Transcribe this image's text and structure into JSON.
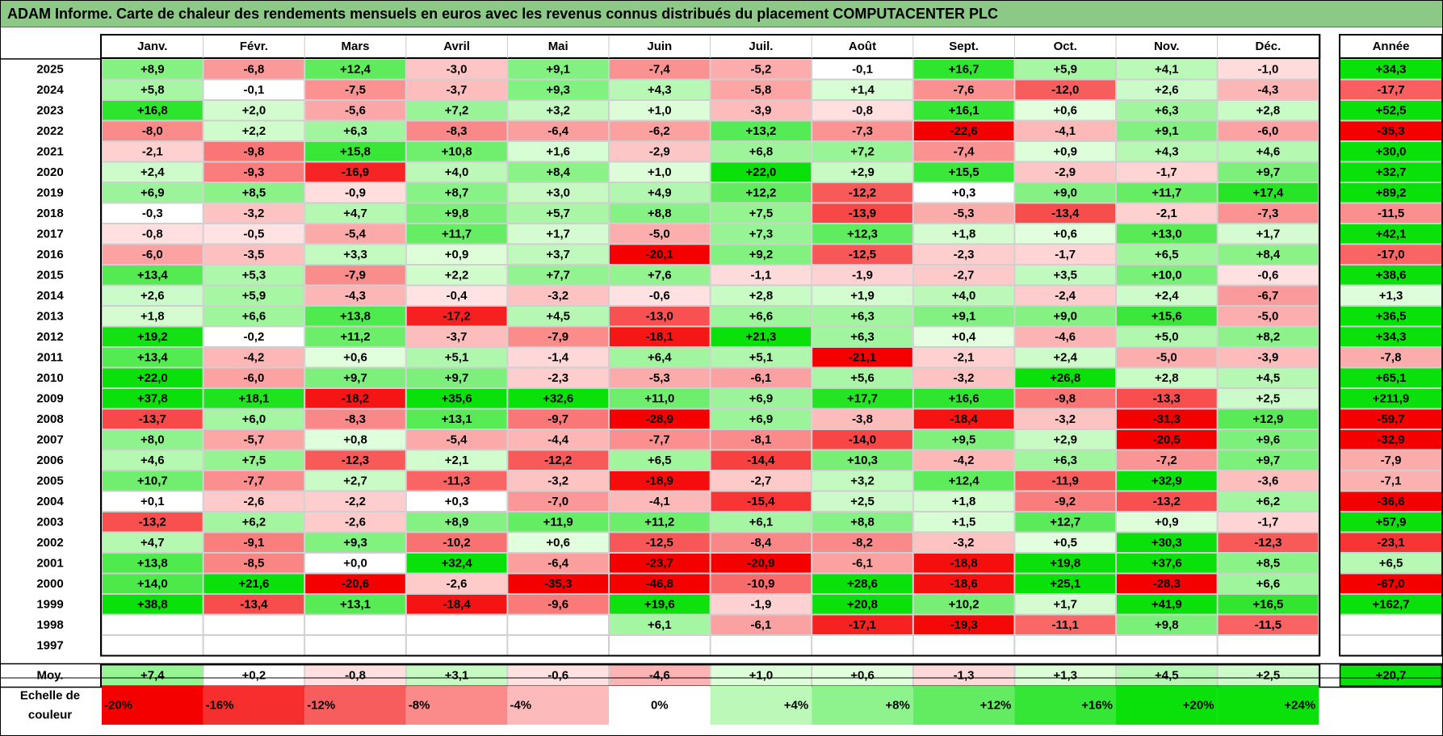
{
  "chart_data": {
    "type": "heatmap",
    "title": "ADAM Informe. Carte de chaleur des rendements mensuels en euros avec les revenus connus distribués du placement COMPUTACENTER PLC",
    "months": [
      "Janv.",
      "Févr.",
      "Mars",
      "Avril",
      "Mai",
      "Juin",
      "Juil.",
      "Août",
      "Sept.",
      "Oct.",
      "Nov.",
      "Déc."
    ],
    "year_header": "Année",
    "rows": [
      {
        "year": "2025",
        "values": [
          "+8,9",
          "-6,8",
          "+12,4",
          "-3,0",
          "+9,1",
          "-7,4",
          "-5,2",
          "-0,1",
          "+16,7",
          "+5,9",
          "+4,1",
          "-1,0"
        ],
        "annual": "+34,3"
      },
      {
        "year": "2024",
        "values": [
          "+5,8",
          "-0,1",
          "-7,5",
          "-3,7",
          "+9,3",
          "+4,3",
          "-5,8",
          "+1,4",
          "-7,6",
          "-12,0",
          "+2,6",
          "-4,3"
        ],
        "annual": "-17,7"
      },
      {
        "year": "2023",
        "values": [
          "+16,8",
          "+2,0",
          "-5,6",
          "+7,2",
          "+3,2",
          "+1,0",
          "-3,9",
          "-0,8",
          "+16,1",
          "+0,6",
          "+6,3",
          "+2,8"
        ],
        "annual": "+52,5"
      },
      {
        "year": "2022",
        "values": [
          "-8,0",
          "+2,2",
          "+6,3",
          "-8,3",
          "-6,4",
          "-6,2",
          "+13,2",
          "-7,3",
          "-22,6",
          "-4,1",
          "+9,1",
          "-6,0"
        ],
        "annual": "-35,3"
      },
      {
        "year": "2021",
        "values": [
          "-2,1",
          "-9,8",
          "+15,8",
          "+10,8",
          "+1,6",
          "-2,9",
          "+6,8",
          "+7,2",
          "-7,4",
          "+0,9",
          "+4,3",
          "+4,6"
        ],
        "annual": "+30,0"
      },
      {
        "year": "2020",
        "values": [
          "+2,4",
          "-9,3",
          "-16,9",
          "+4,0",
          "+8,4",
          "+1,0",
          "+22,0",
          "+2,9",
          "+15,5",
          "-2,9",
          "-1,7",
          "+9,7"
        ],
        "annual": "+32,7"
      },
      {
        "year": "2019",
        "values": [
          "+6,9",
          "+8,5",
          "-0,9",
          "+8,7",
          "+3,0",
          "+4,9",
          "+12,2",
          "-12,2",
          "+0,3",
          "+9,0",
          "+11,7",
          "+17,4"
        ],
        "annual": "+89,2"
      },
      {
        "year": "2018",
        "values": [
          "-0,3",
          "-3,2",
          "+4,7",
          "+9,8",
          "+5,7",
          "+8,8",
          "+7,5",
          "-13,9",
          "-5,3",
          "-13,4",
          "-2,1",
          "-7,3"
        ],
        "annual": "-11,5"
      },
      {
        "year": "2017",
        "values": [
          "-0,8",
          "-0,5",
          "-5,4",
          "+11,7",
          "+1,7",
          "-5,0",
          "+7,3",
          "+12,3",
          "+1,8",
          "+0,6",
          "+13,0",
          "+1,7"
        ],
        "annual": "+42,1"
      },
      {
        "year": "2016",
        "values": [
          "-6,0",
          "-3,5",
          "+3,3",
          "+0,9",
          "+3,7",
          "-20,1",
          "+9,2",
          "-12,5",
          "-2,3",
          "-1,7",
          "+6,5",
          "+8,4"
        ],
        "annual": "-17,0"
      },
      {
        "year": "2015",
        "values": [
          "+13,4",
          "+5,3",
          "-7,9",
          "+2,2",
          "+7,7",
          "+7,6",
          "-1,1",
          "-1,9",
          "-2,7",
          "+3,5",
          "+10,0",
          "-0,6"
        ],
        "annual": "+38,6"
      },
      {
        "year": "2014",
        "values": [
          "+2,6",
          "+5,9",
          "-4,3",
          "-0,4",
          "-3,2",
          "-0,6",
          "+2,8",
          "+1,9",
          "+4,0",
          "-2,4",
          "+2,4",
          "-6,7"
        ],
        "annual": "+1,3"
      },
      {
        "year": "2013",
        "values": [
          "+1,8",
          "+6,6",
          "+13,8",
          "-17,2",
          "+4,5",
          "-13,0",
          "+6,6",
          "+6,3",
          "+9,1",
          "+9,0",
          "+15,6",
          "-5,0"
        ],
        "annual": "+36,5"
      },
      {
        "year": "2012",
        "values": [
          "+19,2",
          "-0,2",
          "+11,2",
          "-3,7",
          "-7,9",
          "-18,1",
          "+21,3",
          "+6,3",
          "+0,4",
          "-4,6",
          "+5,0",
          "+8,2"
        ],
        "annual": "+34,3"
      },
      {
        "year": "2011",
        "values": [
          "+13,4",
          "-4,2",
          "+0,6",
          "+5,1",
          "-1,4",
          "+6,4",
          "+5,1",
          "-21,1",
          "-2,1",
          "+2,4",
          "-5,0",
          "-3,9"
        ],
        "annual": "-7,8"
      },
      {
        "year": "2010",
        "values": [
          "+22,0",
          "-6,0",
          "+9,7",
          "+9,7",
          "-2,3",
          "-5,3",
          "-6,1",
          "+5,6",
          "-3,2",
          "+26,8",
          "+2,8",
          "+4,5"
        ],
        "annual": "+65,1"
      },
      {
        "year": "2009",
        "values": [
          "+37,8",
          "+18,1",
          "-18,2",
          "+35,6",
          "+32,6",
          "+11,0",
          "+6,9",
          "+17,7",
          "+16,6",
          "-9,8",
          "-13,3",
          "+2,5"
        ],
        "annual": "+211,9"
      },
      {
        "year": "2008",
        "values": [
          "-13,7",
          "+6,0",
          "-8,3",
          "+13,1",
          "-9,7",
          "-28,9",
          "+6,9",
          "-3,8",
          "-18,4",
          "-3,2",
          "-31,3",
          "+12,9"
        ],
        "annual": "-59,7"
      },
      {
        "year": "2007",
        "values": [
          "+8,0",
          "-5,7",
          "+0,8",
          "-5,4",
          "-4,4",
          "-7,7",
          "-8,1",
          "-14,0",
          "+9,5",
          "+2,9",
          "-20,5",
          "+9,6"
        ],
        "annual": "-32,9"
      },
      {
        "year": "2006",
        "values": [
          "+4,6",
          "+7,5",
          "-12,3",
          "+2,1",
          "-12,2",
          "+6,5",
          "-14,4",
          "+10,3",
          "-4,2",
          "+6,3",
          "-7,2",
          "+9,7"
        ],
        "annual": "-7,9"
      },
      {
        "year": "2005",
        "values": [
          "+10,7",
          "-7,7",
          "+2,7",
          "-11,3",
          "-3,2",
          "-18,9",
          "-2,7",
          "+3,2",
          "+12,4",
          "-11,9",
          "+32,9",
          "-3,6"
        ],
        "annual": "-7,1"
      },
      {
        "year": "2004",
        "values": [
          "+0,1",
          "-2,6",
          "-2,2",
          "+0,3",
          "-7,0",
          "-4,1",
          "-15,4",
          "+2,5",
          "+1,8",
          "-9,2",
          "-13,2",
          "+6,2"
        ],
        "annual": "-36,6"
      },
      {
        "year": "2003",
        "values": [
          "-13,2",
          "+6,2",
          "-2,6",
          "+8,9",
          "+11,9",
          "+11,2",
          "+6,1",
          "+8,8",
          "+1,5",
          "+12,7",
          "+0,9",
          "-1,7"
        ],
        "annual": "+57,9"
      },
      {
        "year": "2002",
        "values": [
          "+4,7",
          "-9,1",
          "+9,3",
          "-10,2",
          "+0,6",
          "-12,5",
          "-8,4",
          "-8,2",
          "-3,2",
          "+0,5",
          "+30,3",
          "-12,3"
        ],
        "annual": "-23,1"
      },
      {
        "year": "2001",
        "values": [
          "+13,8",
          "-8,5",
          "+0,0",
          "+32,4",
          "-6,4",
          "-23,7",
          "-20,9",
          "-6,1",
          "-18,8",
          "+19,8",
          "+37,6",
          "+8,5"
        ],
        "annual": "+6,5"
      },
      {
        "year": "2000",
        "values": [
          "+14,0",
          "+21,6",
          "-20,6",
          "-2,6",
          "-35,3",
          "-46,8",
          "-10,9",
          "+28,6",
          "-18,6",
          "+25,1",
          "-28,3",
          "+6,6"
        ],
        "annual": "-67,0"
      },
      {
        "year": "1999",
        "values": [
          "+38,8",
          "-13,4",
          "+13,1",
          "-18,4",
          "-9,6",
          "+19,6",
          "-1,9",
          "+20,8",
          "+10,2",
          "+1,7",
          "+41,9",
          "+16,5"
        ],
        "annual": "+162,7"
      },
      {
        "year": "1998",
        "values": [
          "",
          "",
          "",
          "",
          "",
          "+6,1",
          "-6,1",
          "-17,1",
          "-19,3",
          "-11,1",
          "+9,8",
          "-11,5"
        ],
        "annual": ""
      },
      {
        "year": "1997",
        "values": [
          "",
          "",
          "",
          "",
          "",
          "",
          "",
          "",
          "",
          "",
          "",
          ""
        ],
        "annual": ""
      }
    ],
    "average": {
      "label": "Moy.",
      "values": [
        "+7,4",
        "+0,2",
        "-0,8",
        "+3,1",
        "-0,6",
        "-4,6",
        "+1,0",
        "+0,6",
        "-1,3",
        "+1,3",
        "+4,5",
        "+2,5"
      ],
      "annual": "+20,7"
    },
    "color_scale": {
      "label_line1": "Echelle de",
      "label_line2": "couleur",
      "stops": [
        "-20%",
        "-16%",
        "-12%",
        "-8%",
        "-4%",
        "0%",
        "+4%",
        "+8%",
        "+12%",
        "+16%",
        "+20%",
        "+24%"
      ]
    }
  }
}
